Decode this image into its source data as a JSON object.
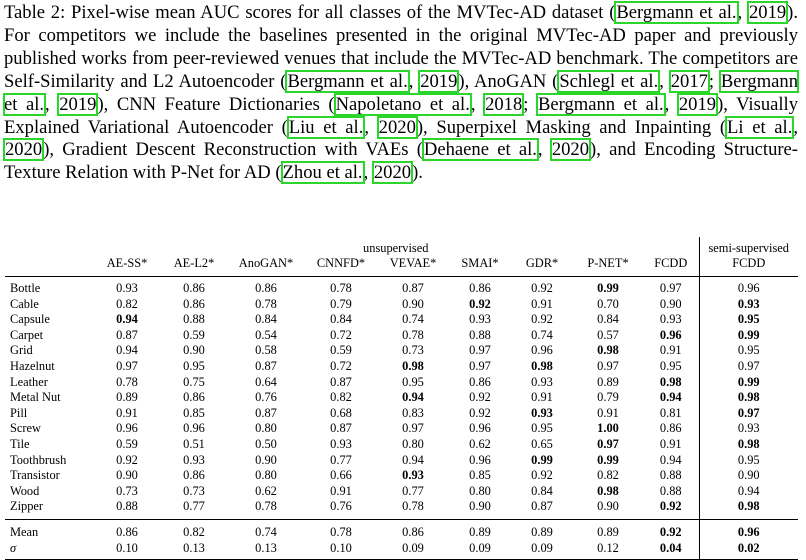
{
  "caption": {
    "parts": [
      {
        "t": "Table 2: Pixel-wise mean AUC scores for all classes of the MVTec-AD dataset ("
      },
      {
        "t": "Bergmann et al.",
        "cite": true
      },
      {
        "t": ", "
      },
      {
        "t": "2019",
        "cite": true
      },
      {
        "t": "). For competitors we include the baselines presented in the original MVTec-AD paper and previously published works from peer-reviewed venues that include the MVTec-AD benchmark. The competitors are Self-Similarity and L2 Autoencoder ("
      },
      {
        "t": "Bergmann et al.",
        "cite": true
      },
      {
        "t": ", "
      },
      {
        "t": "2019",
        "cite": true
      },
      {
        "t": "), AnoGAN ("
      },
      {
        "t": "Schlegl et al.",
        "cite": true
      },
      {
        "t": ", "
      },
      {
        "t": "2017",
        "cite": true
      },
      {
        "t": "; "
      },
      {
        "t": "Bergmann et al.",
        "cite": true
      },
      {
        "t": ", "
      },
      {
        "t": "2019",
        "cite": true
      },
      {
        "t": "), CNN Feature Dictionaries ("
      },
      {
        "t": "Napoletano et al.",
        "cite": true
      },
      {
        "t": ", "
      },
      {
        "t": "2018",
        "cite": true
      },
      {
        "t": "; "
      },
      {
        "t": "Bergmann et al.",
        "cite": true
      },
      {
        "t": ", "
      },
      {
        "t": "2019",
        "cite": true
      },
      {
        "t": "), Visually Explained Variational Autoencoder ("
      },
      {
        "t": "Liu et al.",
        "cite": true
      },
      {
        "t": ", "
      },
      {
        "t": "2020",
        "cite": true
      },
      {
        "t": "), Superpixel Masking and Inpainting ("
      },
      {
        "t": "Li et al.",
        "cite": true
      },
      {
        "t": ", "
      },
      {
        "t": "2020",
        "cite": true
      },
      {
        "t": "), Gradient Descent Reconstruction with VAEs ("
      },
      {
        "t": "Dehaene et al.",
        "cite": true
      },
      {
        "t": ", "
      },
      {
        "t": "2020",
        "cite": true
      },
      {
        "t": "), and Encoding Structure-Texture Relation with P-Net for AD ("
      },
      {
        "t": "Zhou et al.",
        "cite": true
      },
      {
        "t": ", "
      },
      {
        "t": "2020",
        "cite": true
      },
      {
        "t": ")."
      }
    ]
  },
  "table": {
    "group_unsupervised": "unsupervised",
    "group_semi": "semi-supervised",
    "columns": [
      "AE-SS*",
      "AE-L2*",
      "AnoGAN*",
      "CNNFD*",
      "VEVAE*",
      "SMAI*",
      "GDR*",
      "P-NET*",
      "FCDD",
      "FCDD"
    ],
    "rows": [
      {
        "cls": "Bottle",
        "v": [
          "0.93",
          "0.86",
          "0.86",
          "0.78",
          "0.87",
          "0.86",
          "0.92",
          "0.99",
          "0.97",
          "0.96"
        ],
        "b": [
          7
        ]
      },
      {
        "cls": "Cable",
        "v": [
          "0.82",
          "0.86",
          "0.78",
          "0.79",
          "0.90",
          "0.92",
          "0.91",
          "0.70",
          "0.90",
          "0.93"
        ],
        "b": [
          5,
          9
        ]
      },
      {
        "cls": "Capsule",
        "v": [
          "0.94",
          "0.88",
          "0.84",
          "0.84",
          "0.74",
          "0.93",
          "0.92",
          "0.84",
          "0.93",
          "0.95"
        ],
        "b": [
          0,
          9
        ]
      },
      {
        "cls": "Carpet",
        "v": [
          "0.87",
          "0.59",
          "0.54",
          "0.72",
          "0.78",
          "0.88",
          "0.74",
          "0.57",
          "0.96",
          "0.99"
        ],
        "b": [
          8,
          9
        ]
      },
      {
        "cls": "Grid",
        "v": [
          "0.94",
          "0.90",
          "0.58",
          "0.59",
          "0.73",
          "0.97",
          "0.96",
          "0.98",
          "0.91",
          "0.95"
        ],
        "b": [
          7
        ]
      },
      {
        "cls": "Hazelnut",
        "v": [
          "0.97",
          "0.95",
          "0.87",
          "0.72",
          "0.98",
          "0.97",
          "0.98",
          "0.97",
          "0.95",
          "0.97"
        ],
        "b": [
          4,
          6
        ]
      },
      {
        "cls": "Leather",
        "v": [
          "0.78",
          "0.75",
          "0.64",
          "0.87",
          "0.95",
          "0.86",
          "0.93",
          "0.89",
          "0.98",
          "0.99"
        ],
        "b": [
          8,
          9
        ]
      },
      {
        "cls": "Metal Nut",
        "v": [
          "0.89",
          "0.86",
          "0.76",
          "0.82",
          "0.94",
          "0.92",
          "0.91",
          "0.79",
          "0.94",
          "0.98"
        ],
        "b": [
          4,
          8,
          9
        ]
      },
      {
        "cls": "Pill",
        "v": [
          "0.91",
          "0.85",
          "0.87",
          "0.68",
          "0.83",
          "0.92",
          "0.93",
          "0.91",
          "0.81",
          "0.97"
        ],
        "b": [
          6,
          9
        ]
      },
      {
        "cls": "Screw",
        "v": [
          "0.96",
          "0.96",
          "0.80",
          "0.87",
          "0.97",
          "0.96",
          "0.95",
          "1.00",
          "0.86",
          "0.93"
        ],
        "b": [
          7
        ]
      },
      {
        "cls": "Tile",
        "v": [
          "0.59",
          "0.51",
          "0.50",
          "0.93",
          "0.80",
          "0.62",
          "0.65",
          "0.97",
          "0.91",
          "0.98"
        ],
        "b": [
          7,
          9
        ]
      },
      {
        "cls": "Toothbrush",
        "v": [
          "0.92",
          "0.93",
          "0.90",
          "0.77",
          "0.94",
          "0.96",
          "0.99",
          "0.99",
          "0.94",
          "0.95"
        ],
        "b": [
          6,
          7
        ]
      },
      {
        "cls": "Transistor",
        "v": [
          "0.90",
          "0.86",
          "0.80",
          "0.66",
          "0.93",
          "0.85",
          "0.92",
          "0.82",
          "0.88",
          "0.90"
        ],
        "b": [
          4
        ]
      },
      {
        "cls": "Wood",
        "v": [
          "0.73",
          "0.73",
          "0.62",
          "0.91",
          "0.77",
          "0.80",
          "0.84",
          "0.98",
          "0.88",
          "0.94"
        ],
        "b": [
          7
        ]
      },
      {
        "cls": "Zipper",
        "v": [
          "0.88",
          "0.77",
          "0.78",
          "0.76",
          "0.78",
          "0.90",
          "0.87",
          "0.90",
          "0.92",
          "0.98"
        ],
        "b": [
          8,
          9
        ]
      }
    ],
    "summary": [
      {
        "cls": "Mean",
        "v": [
          "0.86",
          "0.82",
          "0.74",
          "0.78",
          "0.86",
          "0.89",
          "0.89",
          "0.89",
          "0.92",
          "0.96"
        ],
        "b": [
          8,
          9
        ]
      },
      {
        "cls": "σ",
        "v": [
          "0.10",
          "0.13",
          "0.13",
          "0.10",
          "0.09",
          "0.09",
          "0.09",
          "0.12",
          "0.04",
          "0.02"
        ],
        "b": [
          8,
          9
        ],
        "italic": true
      }
    ]
  }
}
